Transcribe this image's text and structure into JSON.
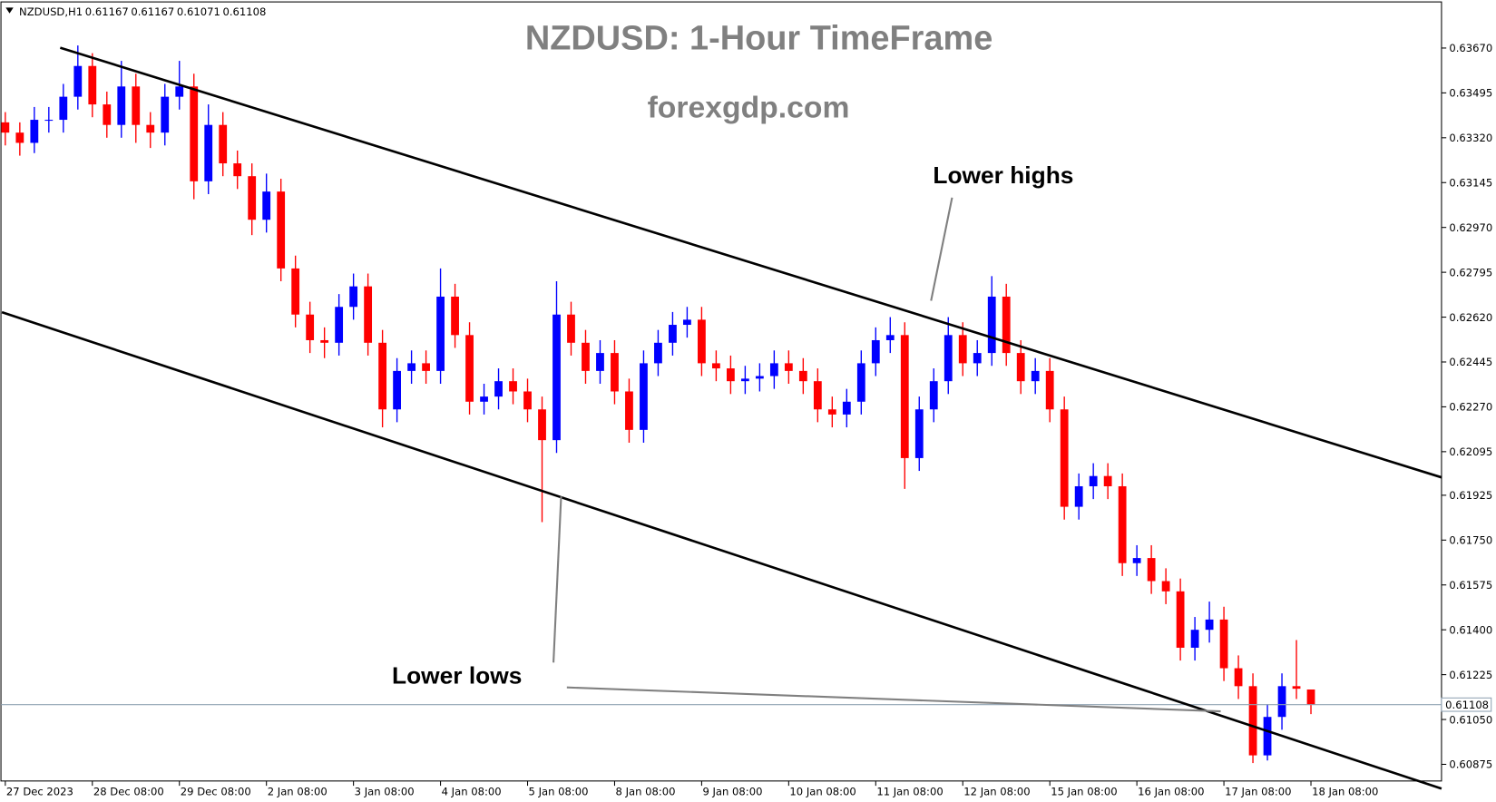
{
  "chart_data": {
    "type": "candlestick",
    "symbol": "NZDUSD,H1",
    "title": "NZDUSD: 1-Hour TimeFrame",
    "subtitle": "forexgdp.com",
    "annotations": [
      "Lower highs",
      "Lower lows"
    ],
    "up_color": "#0000ff",
    "down_color": "#ff0000",
    "xlim": [
      -0.3,
      99
    ],
    "ylim": [
      0.6081,
      0.6385
    ],
    "xticks": [
      {
        "value": 0,
        "label": "27 Dec 2023"
      },
      {
        "value": 6,
        "label": "28 Dec 08:00"
      },
      {
        "value": 12,
        "label": "29 Dec 08:00"
      },
      {
        "value": 18,
        "label": "2 Jan 08:00"
      },
      {
        "value": 24,
        "label": "3 Jan 08:00"
      },
      {
        "value": 30,
        "label": "4 Jan 08:00"
      },
      {
        "value": 36,
        "label": "5 Jan 08:00"
      },
      {
        "value": 42,
        "label": "8 Jan 08:00"
      },
      {
        "value": 48,
        "label": "9 Jan 08:00"
      },
      {
        "value": 54,
        "label": "10 Jan 08:00"
      },
      {
        "value": 60,
        "label": "11 Jan 08:00"
      },
      {
        "value": 66,
        "label": "12 Jan 08:00"
      },
      {
        "value": 72,
        "label": "15 Jan 08:00"
      },
      {
        "value": 78,
        "label": "16 Jan 08:00"
      },
      {
        "value": 84,
        "label": "17 Jan 08:00"
      },
      {
        "value": 90,
        "label": "18 Jan 08:00"
      }
    ],
    "yticks": [
      {
        "value": 0.6367,
        "label": "0.63670"
      },
      0.63495,
      {
        "value": 0.6332,
        "label": "0.63320"
      },
      0.63145,
      {
        "value": 0.6297,
        "label": "0.62970"
      },
      0.62795,
      {
        "value": 0.6262,
        "label": "0.62620"
      },
      0.62445,
      {
        "value": 0.6227,
        "label": "0.62270"
      },
      0.62095,
      0.61925,
      {
        "value": 0.6175,
        "label": "0.61750"
      },
      0.61575,
      {
        "value": 0.614,
        "label": "0.61400"
      },
      0.61225,
      {
        "value": 0.6105,
        "label": "0.61050"
      },
      0.60875
    ],
    "open": [
      0.6338,
      0.6334,
      0.633,
      0.6339,
      0.6339,
      0.6348,
      0.636,
      0.6345,
      0.6337,
      0.6352,
      0.6337,
      0.6334,
      0.6348,
      0.6352,
      0.6315,
      0.6337,
      0.6322,
      0.6317,
      0.63,
      0.6311,
      0.6281,
      0.6263,
      0.6253,
      0.6252,
      0.6266,
      0.6274,
      0.6252,
      0.6226,
      0.6241,
      0.6244,
      0.6241,
      0.627,
      0.6255,
      0.6229,
      0.6231,
      0.6237,
      0.6233,
      0.6226,
      0.6214,
      0.6263,
      0.6252,
      0.6241,
      0.6248,
      0.6233,
      0.6218,
      0.6244,
      0.6252,
      0.6259,
      0.6261,
      0.6244,
      0.6242,
      0.6237,
      0.6238,
      0.6239,
      0.6244,
      0.6241,
      0.6237,
      0.6226,
      0.6224,
      0.6229,
      0.6244,
      0.6253,
      0.6255,
      0.6207,
      0.6226,
      0.6237,
      0.6255,
      0.6244,
      0.6248,
      0.627,
      0.6248,
      0.6237,
      0.6241,
      0.6226,
      0.6188,
      0.6196,
      0.62,
      0.6196,
      0.6166,
      0.6168,
      0.6159,
      0.6155,
      0.6133,
      0.614,
      0.6144,
      0.6125,
      0.6118,
      0.6091,
      0.6106,
      0.6118,
      0.61167
    ],
    "high": [
      0.6342,
      0.6338,
      0.6344,
      0.6344,
      0.6353,
      0.6368,
      0.6365,
      0.635,
      0.6362,
      0.6357,
      0.6342,
      0.6353,
      0.6362,
      0.6357,
      0.6345,
      0.6342,
      0.6327,
      0.6322,
      0.6318,
      0.6316,
      0.6286,
      0.6268,
      0.6258,
      0.6271,
      0.6279,
      0.6279,
      0.6257,
      0.6246,
      0.6249,
      0.6249,
      0.6281,
      0.6275,
      0.626,
      0.6236,
      0.6242,
      0.6242,
      0.6238,
      0.6231,
      0.6276,
      0.6268,
      0.6257,
      0.6253,
      0.6253,
      0.6238,
      0.6249,
      0.6257,
      0.6264,
      0.6266,
      0.6266,
      0.6249,
      0.6247,
      0.6243,
      0.6244,
      0.6249,
      0.6249,
      0.6246,
      0.6242,
      0.6231,
      0.6234,
      0.6249,
      0.6258,
      0.6262,
      0.626,
      0.6231,
      0.6242,
      0.6262,
      0.626,
      0.6253,
      0.6278,
      0.6275,
      0.6253,
      0.6246,
      0.6246,
      0.6231,
      0.6201,
      0.6205,
      0.6205,
      0.6201,
      0.6173,
      0.6173,
      0.6164,
      0.616,
      0.6145,
      0.6151,
      0.6149,
      0.613,
      0.6123,
      0.6111,
      0.6123,
      0.6136,
      0.61167
    ],
    "low": [
      0.6329,
      0.6325,
      0.6326,
      0.6334,
      0.6334,
      0.6343,
      0.634,
      0.6332,
      0.6332,
      0.633,
      0.6328,
      0.6329,
      0.6343,
      0.6308,
      0.631,
      0.6317,
      0.6312,
      0.6294,
      0.6295,
      0.6276,
      0.6258,
      0.6248,
      0.6246,
      0.6247,
      0.6261,
      0.6247,
      0.6219,
      0.6221,
      0.6236,
      0.6236,
      0.6236,
      0.625,
      0.6224,
      0.6224,
      0.6226,
      0.6228,
      0.6221,
      0.6182,
      0.6209,
      0.6247,
      0.6236,
      0.6236,
      0.6228,
      0.6213,
      0.6213,
      0.6239,
      0.6247,
      0.6254,
      0.6239,
      0.6237,
      0.6232,
      0.6232,
      0.6233,
      0.6234,
      0.6236,
      0.6232,
      0.6221,
      0.6219,
      0.6219,
      0.6224,
      0.6239,
      0.6248,
      0.6195,
      0.6202,
      0.6221,
      0.6232,
      0.6239,
      0.6239,
      0.6243,
      0.6243,
      0.6232,
      0.6232,
      0.6221,
      0.6183,
      0.6183,
      0.6191,
      0.6191,
      0.6161,
      0.6161,
      0.6154,
      0.615,
      0.6128,
      0.6128,
      0.6135,
      0.612,
      0.6113,
      0.6088,
      0.6089,
      0.6101,
      0.6113,
      0.61071
    ],
    "close": [
      0.6334,
      0.633,
      0.6339,
      0.6339,
      0.6348,
      0.636,
      0.6345,
      0.6337,
      0.6352,
      0.6337,
      0.6334,
      0.6348,
      0.6352,
      0.6315,
      0.6337,
      0.6322,
      0.6317,
      0.63,
      0.6311,
      0.6281,
      0.6263,
      0.6253,
      0.6252,
      0.6266,
      0.6274,
      0.6252,
      0.6226,
      0.6241,
      0.6244,
      0.6241,
      0.627,
      0.6255,
      0.6229,
      0.6231,
      0.6237,
      0.6233,
      0.6226,
      0.6214,
      0.6263,
      0.6252,
      0.6241,
      0.6248,
      0.6233,
      0.6218,
      0.6244,
      0.6252,
      0.6259,
      0.6261,
      0.6244,
      0.6242,
      0.6237,
      0.6238,
      0.6239,
      0.6244,
      0.6241,
      0.6237,
      0.6226,
      0.6224,
      0.6229,
      0.6244,
      0.6253,
      0.6255,
      0.6207,
      0.6226,
      0.6237,
      0.6255,
      0.6244,
      0.6248,
      0.627,
      0.6248,
      0.6237,
      0.6241,
      0.6226,
      0.6188,
      0.6196,
      0.62,
      0.6196,
      0.6166,
      0.6168,
      0.6159,
      0.6155,
      0.6133,
      0.614,
      0.6144,
      0.6125,
      0.6118,
      0.6091,
      0.6106,
      0.6118,
      0.6117,
      0.61108
    ]
  }
}
